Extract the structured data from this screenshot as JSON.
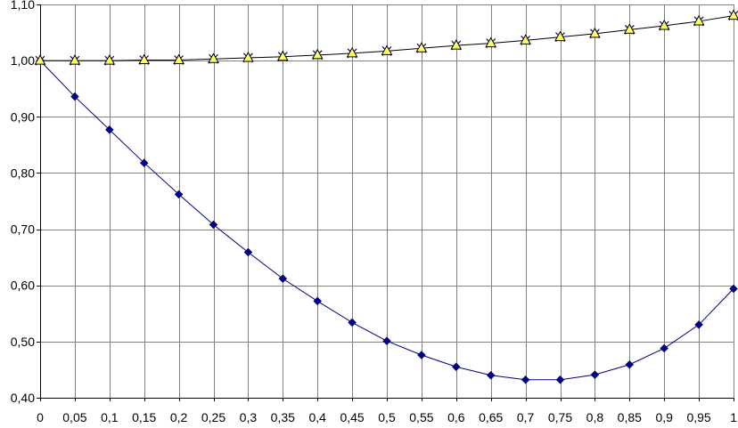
{
  "chart_data": {
    "type": "line",
    "title": "",
    "xlabel": "",
    "ylabel": "",
    "x": [
      0,
      0.05,
      0.1,
      0.15,
      0.2,
      0.25,
      0.3,
      0.35,
      0.4,
      0.45,
      0.5,
      0.55,
      0.6,
      0.65,
      0.7,
      0.75,
      0.8,
      0.85,
      0.9,
      0.95,
      1
    ],
    "x_tick_labels": [
      "0",
      "0,05",
      "0,1",
      "0,15",
      "0,2",
      "0,25",
      "0,3",
      "0,35",
      "0,4",
      "0,45",
      "0,5",
      "0,55",
      "0,6",
      "0,65",
      "0,7",
      "0,75",
      "0,8",
      "0,85",
      "0,9",
      "0,95",
      "1"
    ],
    "ylim": [
      0.4,
      1.1
    ],
    "y_ticks": [
      0.4,
      0.5,
      0.6,
      0.7,
      0.8,
      0.9,
      1.0,
      1.1
    ],
    "y_tick_labels": [
      "0,40",
      "0,50",
      "0,60",
      "0,70",
      "0,80",
      "0,90",
      "1,00",
      "1,10"
    ],
    "grid": true,
    "legend": "none",
    "series": [
      {
        "marker": "diamond",
        "color": "#000080",
        "values": [
          1.0,
          0.936,
          0.877,
          0.818,
          0.762,
          0.708,
          0.659,
          0.612,
          0.572,
          0.534,
          0.501,
          0.476,
          0.455,
          0.44,
          0.432,
          0.432,
          0.441,
          0.459,
          0.488,
          0.53,
          0.594
        ]
      },
      {
        "marker": "triangle",
        "color": "#ffff66",
        "values": [
          1.0,
          1.0,
          1.0,
          1.001,
          1.001,
          1.003,
          1.005,
          1.007,
          1.01,
          1.013,
          1.017,
          1.022,
          1.027,
          1.031,
          1.036,
          1.042,
          1.048,
          1.055,
          1.062,
          1.07,
          1.08
        ]
      }
    ]
  }
}
